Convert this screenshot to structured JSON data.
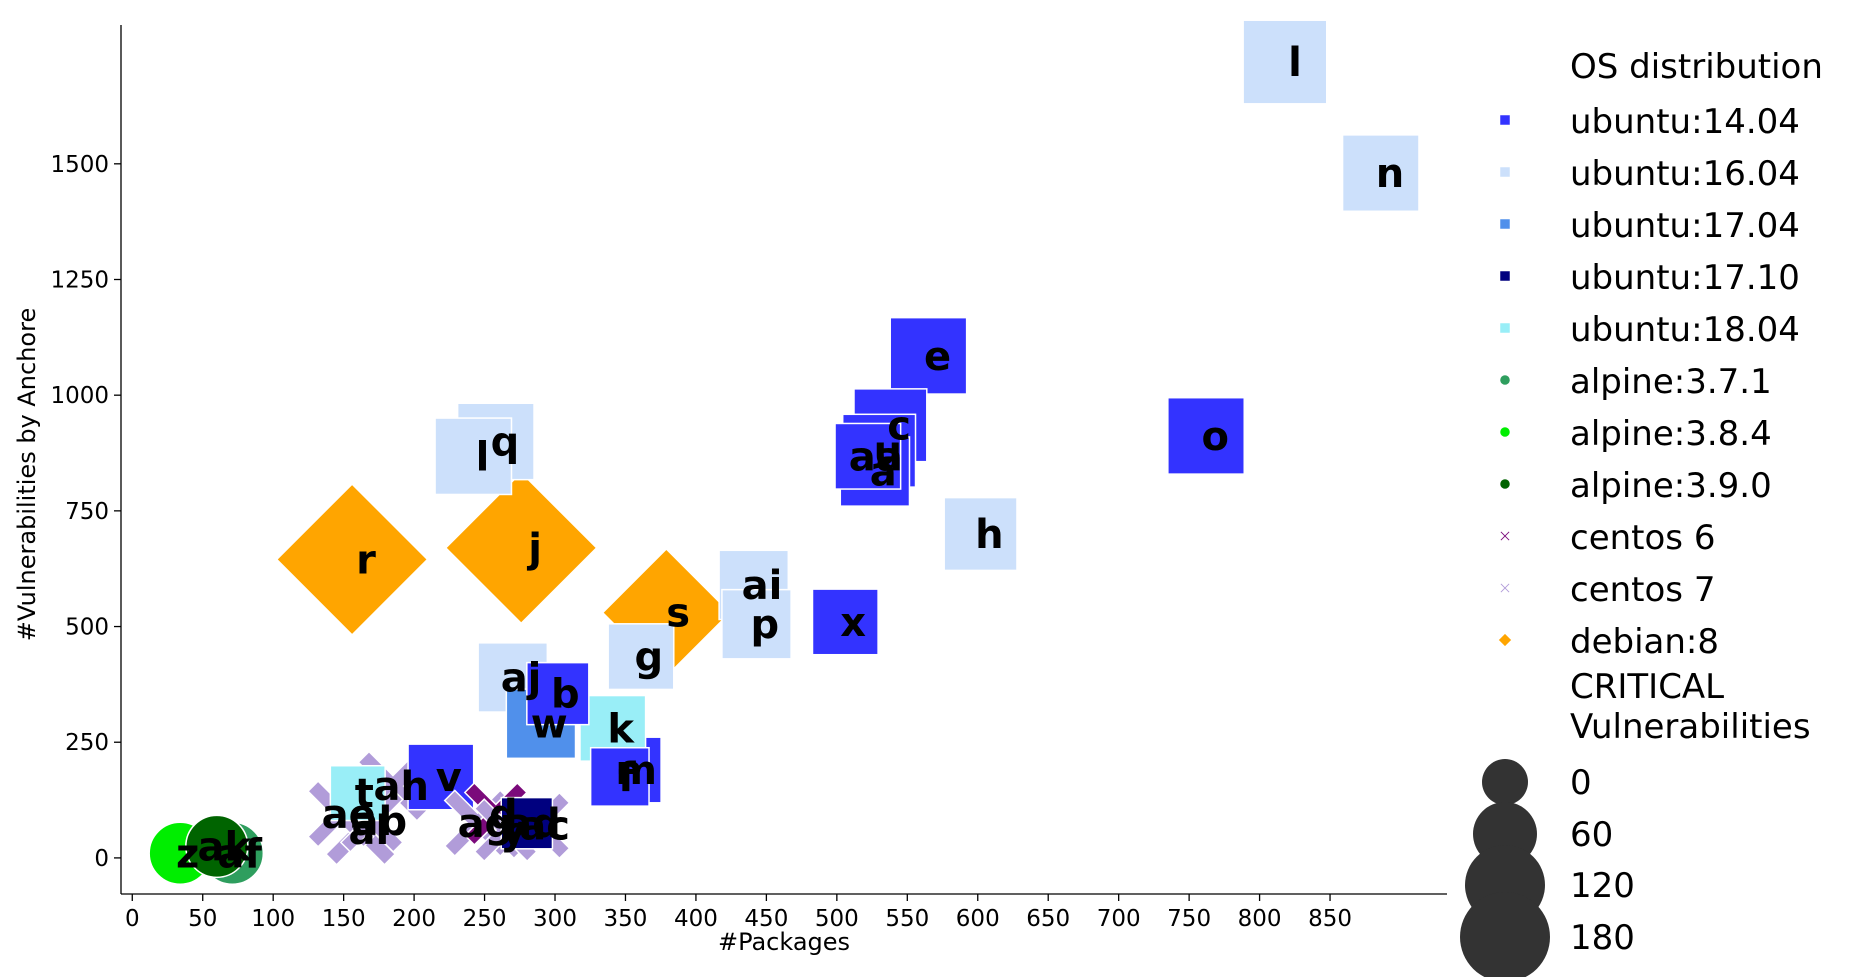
{
  "chart_data": {
    "type": "scatter",
    "xlabel": "#Packages",
    "ylabel": "#Vulnerabilities by Anchore",
    "xlim": [
      -8,
      933
    ],
    "ylim": [
      -78,
      1800
    ],
    "x_ticks": [
      0,
      50,
      100,
      150,
      200,
      250,
      300,
      350,
      400,
      450,
      500,
      550,
      600,
      650,
      700,
      750,
      800,
      850
    ],
    "y_ticks": [
      0,
      250,
      500,
      750,
      1000,
      1250,
      1500
    ],
    "grid": false,
    "legend": {
      "position": "right",
      "title": "OS distribution",
      "size_title": "CRITICAL Vulnerabilities",
      "size_title_lines": [
        "CRITICAL",
        "Vulnerabilities"
      ],
      "size_entries": [
        {
          "label": "0",
          "value": 0
        },
        {
          "label": "60",
          "value": 60
        },
        {
          "label": "120",
          "value": 120
        },
        {
          "label": "180",
          "value": 180
        }
      ]
    },
    "series": [
      {
        "name": "ubuntu:14.04",
        "color": "#3333ff",
        "marker": "square"
      },
      {
        "name": "ubuntu:16.04",
        "color": "#cce0fb",
        "marker": "square"
      },
      {
        "name": "ubuntu:17.04",
        "color": "#5090eb",
        "marker": "square"
      },
      {
        "name": "ubuntu:17.10",
        "color": "#00007f",
        "marker": "square"
      },
      {
        "name": "ubuntu:18.04",
        "color": "#99eef7",
        "marker": "square"
      },
      {
        "name": "alpine:3.7.1",
        "color": "#2e9e5e",
        "marker": "circle"
      },
      {
        "name": "alpine:3.8.4",
        "color": "#00ee00",
        "marker": "circle"
      },
      {
        "name": "alpine:3.9.0",
        "color": "#006400",
        "marker": "circle"
      },
      {
        "name": "centos 6",
        "color": "#7b0a7b",
        "marker": "x"
      },
      {
        "name": "centos 7",
        "color": "#b19cd9",
        "marker": "x"
      },
      {
        "name": "debian:8",
        "color": "#ffa500",
        "marker": "diamond"
      }
    ],
    "points": [
      {
        "label": "e",
        "os": "ubuntu:14.04",
        "x": 565,
        "y": 1085,
        "critical": 45
      },
      {
        "label": "c",
        "os": "ubuntu:14.04",
        "x": 538,
        "y": 935,
        "critical": 40
      },
      {
        "label": "u",
        "os": "ubuntu:14.04",
        "x": 530,
        "y": 880,
        "critical": 40
      },
      {
        "label": "aa",
        "os": "ubuntu:14.04",
        "x": 522,
        "y": 868,
        "critical": 30
      },
      {
        "label": "a",
        "os": "ubuntu:14.04",
        "x": 527,
        "y": 835,
        "critical": 35
      },
      {
        "label": "o",
        "os": "ubuntu:14.04",
        "x": 762,
        "y": 912,
        "critical": 45
      },
      {
        "label": "x",
        "os": "ubuntu:14.04",
        "x": 506,
        "y": 510,
        "critical": 30
      },
      {
        "label": "b",
        "os": "ubuntu:14.04",
        "x": 302,
        "y": 355,
        "critical": 25
      },
      {
        "label": "m",
        "os": "ubuntu:14.04",
        "x": 352,
        "y": 190,
        "critical": 30
      },
      {
        "label": "f",
        "os": "ubuntu:14.04",
        "x": 346,
        "y": 175,
        "critical": 20
      },
      {
        "label": "v",
        "os": "ubuntu:14.04",
        "x": 219,
        "y": 175,
        "critical": 30
      },
      {
        "label": "l",
        "os": "ubuntu:16.04",
        "x": 818,
        "y": 1720,
        "critical": 55
      },
      {
        "label": "n",
        "os": "ubuntu:16.04",
        "x": 886,
        "y": 1480,
        "critical": 45
      },
      {
        "label": "q",
        "os": "ubuntu:16.04",
        "x": 258,
        "y": 900,
        "critical": 45
      },
      {
        "label": "l",
        "os": "ubuntu:16.04",
        "x": 242,
        "y": 868,
        "critical": 45
      },
      {
        "label": "h",
        "os": "ubuntu:16.04",
        "x": 602,
        "y": 700,
        "critical": 40
      },
      {
        "label": "ai",
        "os": "ubuntu:16.04",
        "x": 441,
        "y": 590,
        "critical": 35
      },
      {
        "label": "p",
        "os": "ubuntu:16.04",
        "x": 443,
        "y": 505,
        "critical": 35
      },
      {
        "label": "g",
        "os": "ubuntu:16.04",
        "x": 361,
        "y": 435,
        "critical": 30
      },
      {
        "label": "aj",
        "os": "ubuntu:16.04",
        "x": 270,
        "y": 390,
        "critical": 35
      },
      {
        "label": "w",
        "os": "ubuntu:17.04",
        "x": 290,
        "y": 290,
        "critical": 35
      },
      {
        "label": "ad",
        "os": "ubuntu:17.10",
        "x": 280,
        "y": 75,
        "critical": 10
      },
      {
        "label": "k",
        "os": "ubuntu:18.04",
        "x": 341,
        "y": 280,
        "critical": 30
      },
      {
        "label": "t",
        "os": "ubuntu:18.04",
        "x": 160,
        "y": 140,
        "critical": 15
      },
      {
        "label": "af",
        "os": "alpine:3.7.1",
        "x": 71,
        "y": 10,
        "critical": 25
      },
      {
        "label": "z",
        "os": "alpine:3.8.4",
        "x": 34,
        "y": 10,
        "critical": 25
      },
      {
        "label": "ak",
        "os": "alpine:3.9.0",
        "x": 60,
        "y": 25,
        "critical": 25
      },
      {
        "label": "d",
        "os": "centos 6",
        "x": 258,
        "y": 95,
        "critical": 25
      },
      {
        "label": "ah",
        "os": "centos 7",
        "x": 185,
        "y": 155,
        "critical": 35
      },
      {
        "label": "ae",
        "os": "centos 7",
        "x": 148,
        "y": 95,
        "critical": 30
      },
      {
        "label": "al",
        "os": "centos 7",
        "x": 162,
        "y": 60,
        "critical": 35
      },
      {
        "label": "ab",
        "os": "centos 7",
        "x": 170,
        "y": 80,
        "critical": 25
      },
      {
        "label": "ag",
        "os": "centos 7",
        "x": 245,
        "y": 75,
        "critical": 30
      },
      {
        "label": "y",
        "os": "centos 7",
        "x": 265,
        "y": 60,
        "critical": 25
      },
      {
        "label": "ac",
        "os": "centos 7",
        "x": 287,
        "y": 70,
        "critical": 30
      },
      {
        "label": "r",
        "os": "debian:8",
        "x": 156,
        "y": 645,
        "critical": 100
      },
      {
        "label": "j",
        "os": "debian:8",
        "x": 276,
        "y": 670,
        "critical": 100
      },
      {
        "label": "s",
        "os": "debian:8",
        "x": 379,
        "y": 530,
        "critical": 75
      }
    ]
  }
}
